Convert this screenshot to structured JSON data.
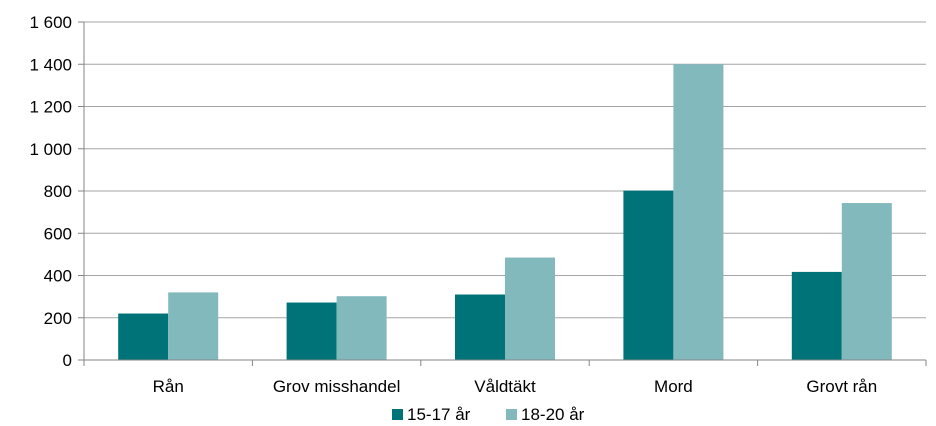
{
  "chart_data": {
    "type": "bar",
    "categories": [
      "Rån",
      "Grov misshandel",
      "Våldtäkt",
      "Mord",
      "Grovt rån"
    ],
    "series": [
      {
        "name": "15-17 år",
        "values": [
          220,
          272,
          310,
          802,
          417
        ],
        "color": "#007378"
      },
      {
        "name": "18-20 år",
        "values": [
          320,
          302,
          485,
          1400,
          743
        ],
        "color": "#82B9BD"
      }
    ],
    "ylim": [
      0,
      1600
    ],
    "yticks": [
      0,
      200,
      400,
      600,
      800,
      1000,
      1200,
      1400,
      1600
    ],
    "ytick_labels": [
      "0",
      "200",
      "400",
      "600",
      "800",
      "1 000",
      "1 200",
      "1 400",
      "1 600"
    ],
    "grid": true,
    "legend_position": "bottom",
    "grid_color": "#A6A6A6",
    "axis_color": "#868686"
  }
}
